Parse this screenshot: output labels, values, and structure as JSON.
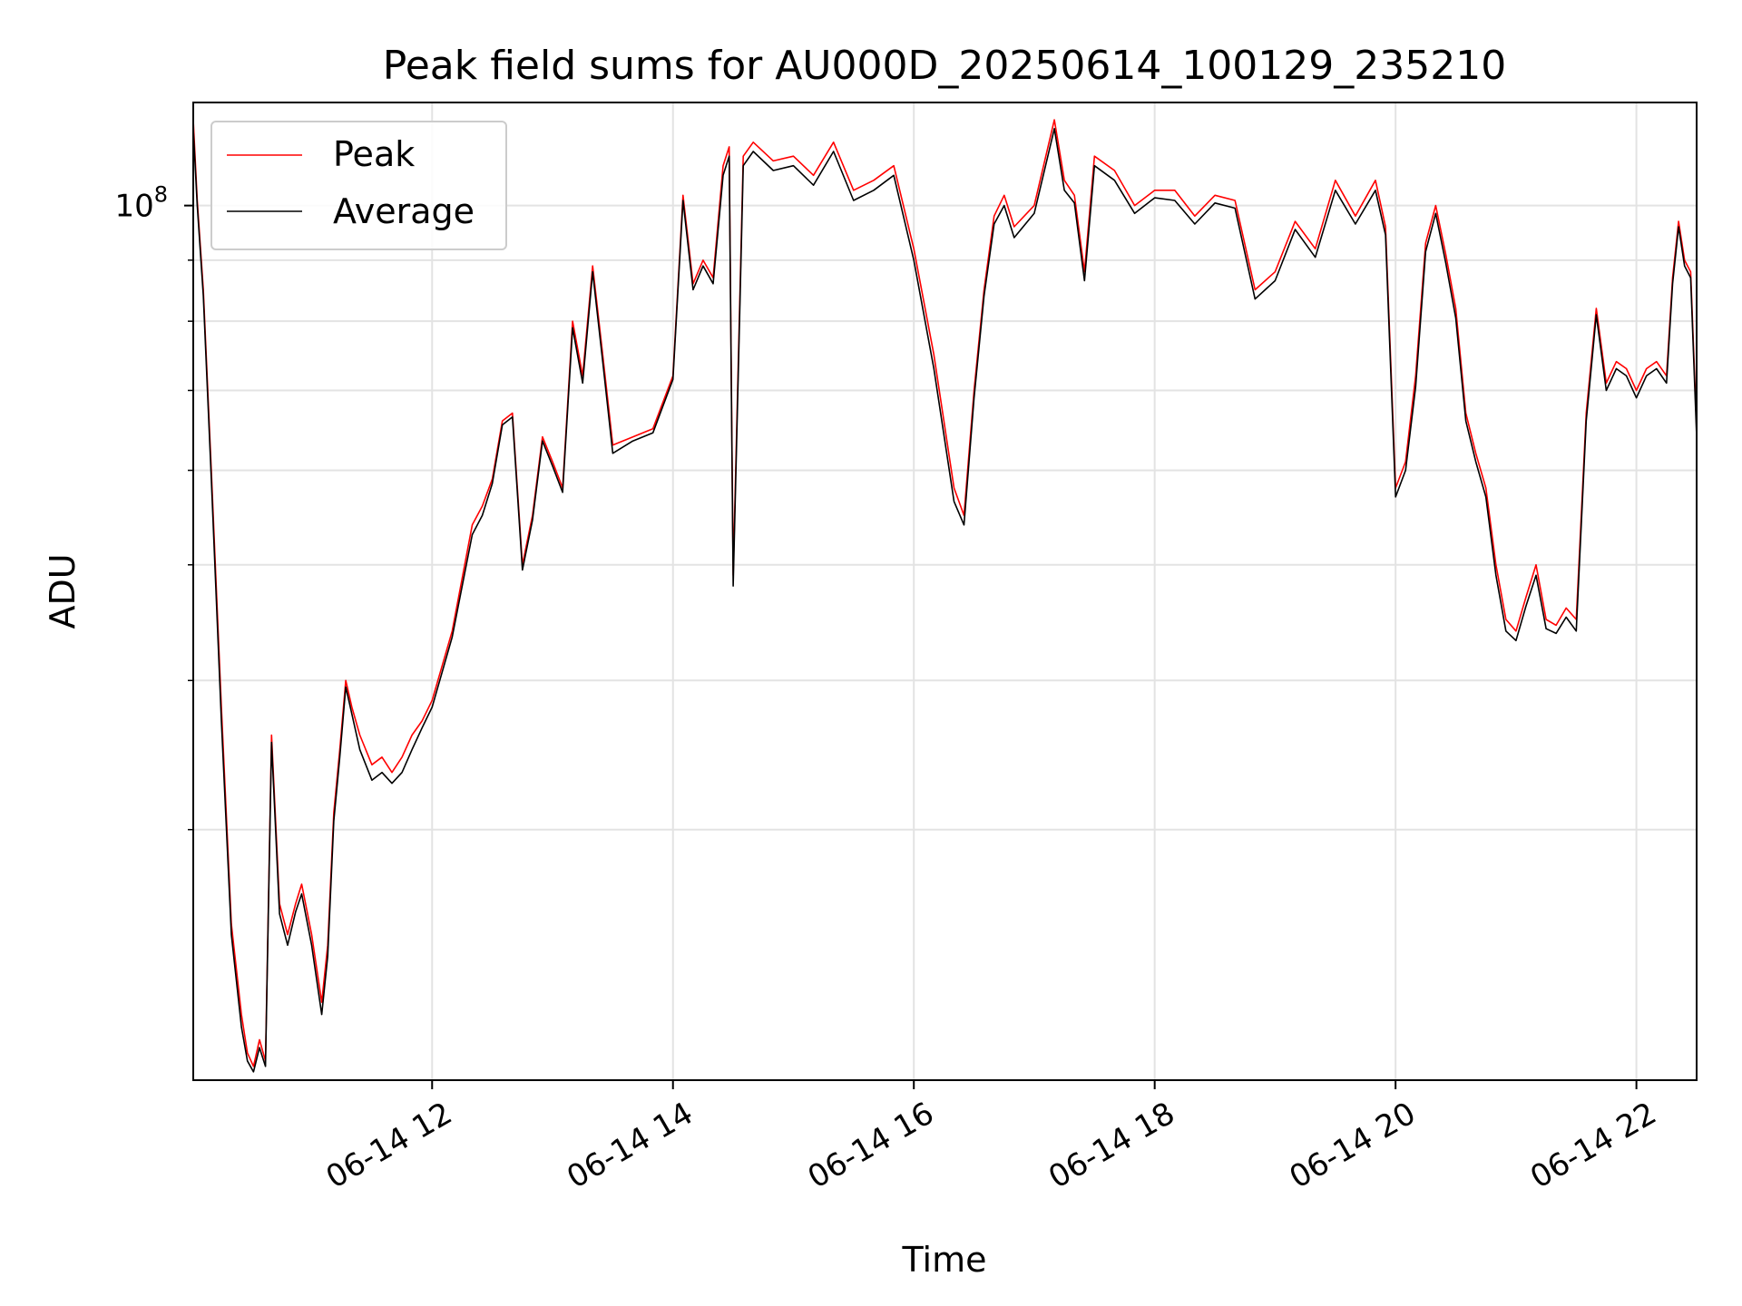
{
  "chart_data": {
    "type": "line",
    "title": "Peak field sums for AU000D_20250614_100129_235210",
    "xlabel": "Time",
    "ylabel": "ADU",
    "x_axis": {
      "kind": "datetime",
      "range": [
        "06-14 10:01",
        "06-14 22:30"
      ],
      "ticks": [
        {
          "value": "06-14 12:00",
          "label": "06-14 12"
        },
        {
          "value": "06-14 14:00",
          "label": "06-14 14"
        },
        {
          "value": "06-14 16:00",
          "label": "06-14 16"
        },
        {
          "value": "06-14 18:00",
          "label": "06-14 18"
        },
        {
          "value": "06-14 20:00",
          "label": "06-14 20"
        },
        {
          "value": "06-14 22:00",
          "label": "06-14 22"
        }
      ]
    },
    "y_axis": {
      "scale": "log",
      "range": [
        18500000,
        122000000
      ],
      "major_ticks": [
        {
          "value": 100000000,
          "base": "10",
          "exponent": "8"
        }
      ],
      "minor_ticks": [
        30000000,
        40000000,
        50000000,
        60000000,
        70000000,
        80000000,
        90000000
      ]
    },
    "grid": true,
    "legend": {
      "placement": "top-left",
      "entries": [
        "Peak",
        "Average"
      ]
    },
    "colors": {
      "Peak": "#ff0000",
      "Average": "#000000"
    },
    "series": [
      {
        "name": "Peak",
        "x": [
          "06-14 10:01",
          "06-14 10:03",
          "06-14 10:06",
          "06-14 10:10",
          "06-14 10:15",
          "06-14 10:20",
          "06-14 10:25",
          "06-14 10:28",
          "06-14 10:31",
          "06-14 10:34",
          "06-14 10:37",
          "06-14 10:40",
          "06-14 10:44",
          "06-14 10:48",
          "06-14 10:52",
          "06-14 10:55",
          "06-14 11:00",
          "06-14 11:05",
          "06-14 11:08",
          "06-14 11:11",
          "06-14 11:14",
          "06-14 11:17",
          "06-14 11:20",
          "06-14 11:24",
          "06-14 11:30",
          "06-14 11:35",
          "06-14 11:40",
          "06-14 11:45",
          "06-14 11:50",
          "06-14 11:55",
          "06-14 12:00",
          "06-14 12:10",
          "06-14 12:20",
          "06-14 12:25",
          "06-14 12:30",
          "06-14 12:35",
          "06-14 12:40",
          "06-14 12:45",
          "06-14 12:50",
          "06-14 12:55",
          "06-14 13:00",
          "06-14 13:05",
          "06-14 13:10",
          "06-14 13:15",
          "06-14 13:20",
          "06-14 13:25",
          "06-14 13:30",
          "06-14 13:40",
          "06-14 13:50",
          "06-14 14:00",
          "06-14 14:05",
          "06-14 14:10",
          "06-14 14:15",
          "06-14 14:20",
          "06-14 14:25",
          "06-14 14:28",
          "06-14 14:30",
          "06-14 14:35",
          "06-14 14:40",
          "06-14 14:50",
          "06-14 15:00",
          "06-14 15:10",
          "06-14 15:20",
          "06-14 15:30",
          "06-14 15:40",
          "06-14 15:50",
          "06-14 16:00",
          "06-14 16:10",
          "06-14 16:20",
          "06-14 16:25",
          "06-14 16:30",
          "06-14 16:35",
          "06-14 16:40",
          "06-14 16:45",
          "06-14 16:50",
          "06-14 17:00",
          "06-14 17:10",
          "06-14 17:15",
          "06-14 17:20",
          "06-14 17:25",
          "06-14 17:30",
          "06-14 17:40",
          "06-14 17:50",
          "06-14 18:00",
          "06-14 18:10",
          "06-14 18:20",
          "06-14 18:30",
          "06-14 18:40",
          "06-14 18:50",
          "06-14 19:00",
          "06-14 19:10",
          "06-14 19:20",
          "06-14 19:30",
          "06-14 19:40",
          "06-14 19:50",
          "06-14 19:55",
          "06-14 20:00",
          "06-14 20:05",
          "06-14 20:10",
          "06-14 20:15",
          "06-14 20:20",
          "06-14 20:25",
          "06-14 20:30",
          "06-14 20:35",
          "06-14 20:40",
          "06-14 20:45",
          "06-14 20:50",
          "06-14 20:55",
          "06-14 21:00",
          "06-14 21:05",
          "06-14 21:10",
          "06-14 21:15",
          "06-14 21:20",
          "06-14 21:25",
          "06-14 21:30",
          "06-14 21:35",
          "06-14 21:40",
          "06-14 21:45",
          "06-14 21:50",
          "06-14 21:55",
          "06-14 22:00",
          "06-14 22:05",
          "06-14 22:10",
          "06-14 22:15",
          "06-14 22:18",
          "06-14 22:21",
          "06-14 22:24",
          "06-14 22:27",
          "06-14 22:30"
        ],
        "y": [
          118000000,
          101000000,
          85000000,
          60000000,
          38000000,
          25000000,
          21000000,
          19500000,
          19000000,
          20000000,
          19200000,
          36000000,
          26000000,
          24500000,
          26000000,
          27000000,
          24500000,
          21500000,
          24000000,
          31000000,
          35000000,
          40000000,
          38000000,
          36000000,
          34000000,
          34500000,
          33500000,
          34500000,
          36000000,
          37000000,
          38500000,
          44000000,
          54000000,
          56000000,
          59000000,
          66000000,
          67000000,
          50000000,
          55000000,
          64000000,
          61000000,
          58000000,
          80000000,
          72000000,
          89000000,
          75000000,
          63000000,
          64000000,
          65000000,
          72000000,
          102000000,
          86000000,
          90000000,
          87000000,
          108000000,
          112000000,
          49000000,
          110000000,
          113000000,
          109000000,
          110000000,
          106000000,
          113000000,
          103000000,
          105000000,
          108000000,
          92000000,
          75000000,
          58000000,
          55000000,
          70000000,
          85000000,
          98000000,
          102000000,
          96000000,
          100000000,
          118000000,
          105000000,
          102000000,
          88000000,
          110000000,
          107000000,
          100000000,
          103000000,
          103000000,
          98000000,
          102000000,
          101000000,
          85000000,
          88000000,
          97000000,
          92000000,
          105000000,
          98000000,
          105000000,
          96000000,
          58000000,
          61000000,
          72000000,
          93000000,
          100000000,
          91000000,
          82000000,
          67000000,
          62000000,
          58000000,
          50000000,
          45000000,
          44000000,
          47000000,
          50000000,
          45000000,
          44500000,
          46000000,
          45000000,
          67000000,
          82000000,
          71000000,
          74000000,
          73000000,
          70000000,
          73000000,
          74000000,
          72000000,
          87000000,
          97000000,
          90000000,
          88000000,
          65000000
        ]
      },
      {
        "name": "Average",
        "x": [
          "06-14 10:01",
          "06-14 10:03",
          "06-14 10:06",
          "06-14 10:10",
          "06-14 10:15",
          "06-14 10:20",
          "06-14 10:25",
          "06-14 10:28",
          "06-14 10:31",
          "06-14 10:34",
          "06-14 10:37",
          "06-14 10:40",
          "06-14 10:44",
          "06-14 10:48",
          "06-14 10:52",
          "06-14 10:55",
          "06-14 11:00",
          "06-14 11:05",
          "06-14 11:08",
          "06-14 11:11",
          "06-14 11:14",
          "06-14 11:17",
          "06-14 11:20",
          "06-14 11:24",
          "06-14 11:30",
          "06-14 11:35",
          "06-14 11:40",
          "06-14 11:45",
          "06-14 11:50",
          "06-14 11:55",
          "06-14 12:00",
          "06-14 12:10",
          "06-14 12:20",
          "06-14 12:25",
          "06-14 12:30",
          "06-14 12:35",
          "06-14 12:40",
          "06-14 12:45",
          "06-14 12:50",
          "06-14 12:55",
          "06-14 13:00",
          "06-14 13:05",
          "06-14 13:10",
          "06-14 13:15",
          "06-14 13:20",
          "06-14 13:25",
          "06-14 13:30",
          "06-14 13:40",
          "06-14 13:50",
          "06-14 14:00",
          "06-14 14:05",
          "06-14 14:10",
          "06-14 14:15",
          "06-14 14:20",
          "06-14 14:25",
          "06-14 14:28",
          "06-14 14:30",
          "06-14 14:35",
          "06-14 14:40",
          "06-14 14:50",
          "06-14 15:00",
          "06-14 15:10",
          "06-14 15:20",
          "06-14 15:30",
          "06-14 15:40",
          "06-14 15:50",
          "06-14 16:00",
          "06-14 16:10",
          "06-14 16:20",
          "06-14 16:25",
          "06-14 16:30",
          "06-14 16:35",
          "06-14 16:40",
          "06-14 16:45",
          "06-14 16:50",
          "06-14 17:00",
          "06-14 17:10",
          "06-14 17:15",
          "06-14 17:20",
          "06-14 17:25",
          "06-14 17:30",
          "06-14 17:40",
          "06-14 17:50",
          "06-14 18:00",
          "06-14 18:10",
          "06-14 18:20",
          "06-14 18:30",
          "06-14 18:40",
          "06-14 18:50",
          "06-14 19:00",
          "06-14 19:10",
          "06-14 19:20",
          "06-14 19:30",
          "06-14 19:40",
          "06-14 19:50",
          "06-14 19:55",
          "06-14 20:00",
          "06-14 20:05",
          "06-14 20:10",
          "06-14 20:15",
          "06-14 20:20",
          "06-14 20:25",
          "06-14 20:30",
          "06-14 20:35",
          "06-14 20:40",
          "06-14 20:45",
          "06-14 20:50",
          "06-14 20:55",
          "06-14 21:00",
          "06-14 21:05",
          "06-14 21:10",
          "06-14 21:15",
          "06-14 21:20",
          "06-14 21:25",
          "06-14 21:30",
          "06-14 21:35",
          "06-14 21:40",
          "06-14 21:45",
          "06-14 21:50",
          "06-14 21:55",
          "06-14 22:00",
          "06-14 22:05",
          "06-14 22:10",
          "06-14 22:15",
          "06-14 22:18",
          "06-14 22:21",
          "06-14 22:24",
          "06-14 22:27",
          "06-14 22:30"
        ],
        "y": [
          116000000,
          100000000,
          84000000,
          59000000,
          37000000,
          24500000,
          20500000,
          19200000,
          18800000,
          19700000,
          19000000,
          35500000,
          25500000,
          24000000,
          25600000,
          26500000,
          24000000,
          21000000,
          23500000,
          30500000,
          34500000,
          39500000,
          37500000,
          35000000,
          33000000,
          33500000,
          32800000,
          33500000,
          35000000,
          36500000,
          38000000,
          43500000,
          53000000,
          55000000,
          58500000,
          65500000,
          66500000,
          49500000,
          54500000,
          63500000,
          60500000,
          57500000,
          79000000,
          71000000,
          88000000,
          74000000,
          62000000,
          63500000,
          64500000,
          71500000,
          101000000,
          85000000,
          89000000,
          86000000,
          106000000,
          110000000,
          48000000,
          108000000,
          111000000,
          107000000,
          108000000,
          104000000,
          111000000,
          101000000,
          103000000,
          106000000,
          90000000,
          73000000,
          56500000,
          54000000,
          69000000,
          84000000,
          96500000,
          100000000,
          94000000,
          98500000,
          116000000,
          103000000,
          100500000,
          86500000,
          108000000,
          105000000,
          98500000,
          101500000,
          101000000,
          96500000,
          100500000,
          99500000,
          83500000,
          86500000,
          95500000,
          90500000,
          103000000,
          96500000,
          103000000,
          94500000,
          57000000,
          60000000,
          70500000,
          91500000,
          98500000,
          89500000,
          80500000,
          66000000,
          61000000,
          57000000,
          49000000,
          44000000,
          43200000,
          46200000,
          49000000,
          44200000,
          43800000,
          45200000,
          44000000,
          66000000,
          81000000,
          70000000,
          73000000,
          72000000,
          69000000,
          72000000,
          73000000,
          71000000,
          86000000,
          96000000,
          89000000,
          87000000,
          64000000
        ]
      }
    ]
  }
}
